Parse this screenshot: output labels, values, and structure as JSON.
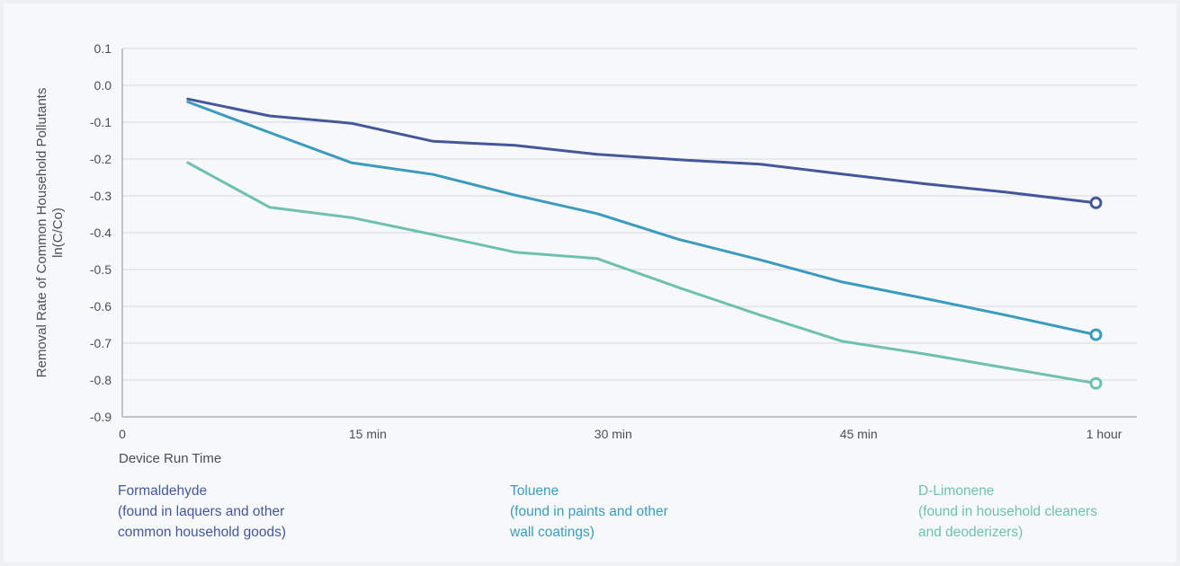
{
  "chart_data": {
    "type": "line",
    "xlabel": "Device Run Time",
    "ylabel": [
      "Removal Rate of Common Household Pollutants",
      "ln(C/Co)"
    ],
    "ylim": [
      -0.9,
      0.1
    ],
    "yticks": [
      "0.1",
      "0.0",
      "-0.1",
      "-0.2",
      "-0.3",
      "-0.4",
      "-0.5",
      "-0.6",
      "-0.7",
      "-0.8",
      "-0.9"
    ],
    "xlim": [
      0,
      62
    ],
    "xticks": [
      {
        "label": "0",
        "value": 0
      },
      {
        "label": "15 min",
        "value": 15
      },
      {
        "label": "30 min",
        "value": 30
      },
      {
        "label": "45 min",
        "value": 45
      },
      {
        "label": "1 hour",
        "value": 60
      }
    ],
    "grid": true,
    "series": [
      {
        "name": "Formaldehyde",
        "note": "(found in laquers and other common household goods)",
        "note_lines": [
          "(found in laquers and other",
          "common household goods)"
        ],
        "color": "#44579a",
        "x": [
          4,
          9,
          14,
          19,
          24,
          29,
          34,
          39,
          44,
          49,
          54,
          59.5
        ],
        "y": [
          -0.037,
          -0.083,
          -0.103,
          -0.152,
          -0.163,
          -0.187,
          -0.202,
          -0.214,
          -0.241,
          -0.267,
          -0.29,
          -0.319
        ]
      },
      {
        "name": "Toluene",
        "note": "(found in paints and other wall coatings)",
        "note_lines": [
          "(found in paints and other",
          "wall coatings)"
        ],
        "color": "#3b9bbf",
        "x": [
          4,
          9,
          14,
          19,
          24,
          29,
          34,
          39,
          44,
          49,
          54,
          59.5
        ],
        "y": [
          -0.045,
          -0.128,
          -0.21,
          -0.242,
          -0.298,
          -0.348,
          -0.418,
          -0.474,
          -0.534,
          -0.578,
          -0.624,
          -0.677
        ]
      },
      {
        "name": "D-Limonene",
        "note": "(found in household cleaners and deoderizers)",
        "note_lines": [
          "(found in household cleaners",
          "and deoderizers)"
        ],
        "color": "#6ec0b3",
        "x": [
          4,
          9,
          14,
          19,
          24,
          29,
          34,
          39,
          44,
          49,
          54,
          59.5
        ],
        "y": [
          -0.21,
          -0.331,
          -0.359,
          -0.405,
          -0.453,
          -0.47,
          -0.549,
          -0.624,
          -0.695,
          -0.729,
          -0.767,
          -0.809
        ]
      }
    ]
  }
}
